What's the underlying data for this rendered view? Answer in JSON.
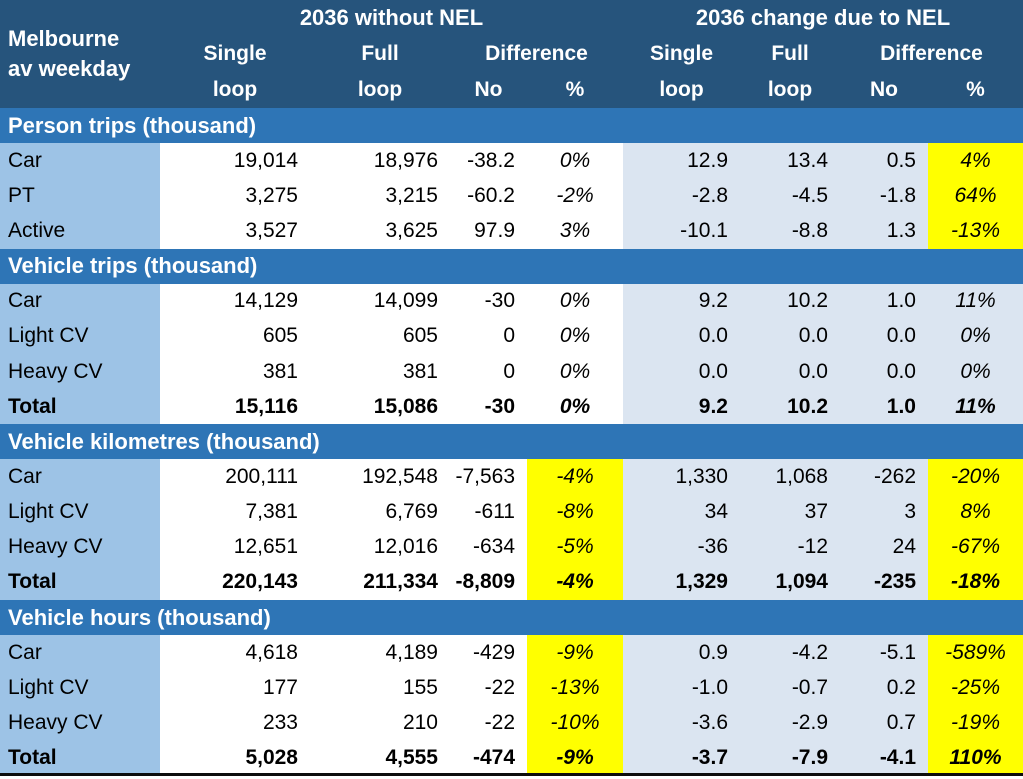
{
  "colors": {
    "header_bg": "#26547C",
    "band_bg": "#2E75B6",
    "label_bg": "#9DC3E6",
    "right_bg": "#DBE5F1",
    "highlight": "#FFFF00"
  },
  "header": {
    "corner_line1": "Melbourne",
    "corner_line2": "av weekday",
    "group_left": "2036 without NEL",
    "group_right": "2036 change due to NEL",
    "sub": {
      "single": "Single",
      "full": "Full",
      "difference": "Difference",
      "loop": "loop",
      "no": "No",
      "pct": "%"
    }
  },
  "sections": [
    {
      "title": "Person trips (thousand)",
      "rows": [
        {
          "label": "Car",
          "values": [
            "19,014",
            "18,976",
            "-38.2",
            "0%",
            "12.9",
            "13.4",
            "0.5",
            "4%"
          ]
        },
        {
          "label": "PT",
          "values": [
            "3,275",
            "3,215",
            "-60.2",
            "-2%",
            "-2.8",
            "-4.5",
            "-1.8",
            "64%"
          ]
        },
        {
          "label": "Active",
          "values": [
            "3,527",
            "3,625",
            "97.9",
            "3%",
            "-10.1",
            "-8.8",
            "1.3",
            "-13%"
          ]
        }
      ]
    },
    {
      "title": "Vehicle trips (thousand)",
      "rows": [
        {
          "label": "Car",
          "values": [
            "14,129",
            "14,099",
            "-30",
            "0%",
            "9.2",
            "10.2",
            "1.0",
            "11%"
          ]
        },
        {
          "label": "Light CV",
          "values": [
            "605",
            "605",
            "0",
            "0%",
            "0.0",
            "0.0",
            "0.0",
            "0%"
          ]
        },
        {
          "label": "Heavy CV",
          "values": [
            "381",
            "381",
            "0",
            "0%",
            "0.0",
            "0.0",
            "0.0",
            "0%"
          ]
        },
        {
          "label": "Total",
          "values": [
            "15,116",
            "15,086",
            "-30",
            "0%",
            "9.2",
            "10.2",
            "1.0",
            "11%"
          ]
        }
      ]
    },
    {
      "title": "Vehicle kilometres (thousand)",
      "rows": [
        {
          "label": "Car",
          "values": [
            "200,111",
            "192,548",
            "-7,563",
            "-4%",
            "1,330",
            "1,068",
            "-262",
            "-20%"
          ]
        },
        {
          "label": "Light CV",
          "values": [
            "7,381",
            "6,769",
            "-611",
            "-8%",
            "34",
            "37",
            "3",
            "8%"
          ]
        },
        {
          "label": "Heavy CV",
          "values": [
            "12,651",
            "12,016",
            "-634",
            "-5%",
            "-36",
            "-12",
            "24",
            "-67%"
          ]
        },
        {
          "label": "Total",
          "values": [
            "220,143",
            "211,334",
            "-8,809",
            "-4%",
            "1,329",
            "1,094",
            "-235",
            "-18%"
          ]
        }
      ]
    },
    {
      "title": "Vehicle hours (thousand)",
      "rows": [
        {
          "label": "Car",
          "values": [
            "4,618",
            "4,189",
            "-429",
            "-9%",
            "0.9",
            "-4.2",
            "-5.1",
            "-589%"
          ]
        },
        {
          "label": "Light CV",
          "values": [
            "177",
            "155",
            "-22",
            "-13%",
            "-1.0",
            "-0.7",
            "0.2",
            "-25%"
          ]
        },
        {
          "label": "Heavy CV",
          "values": [
            "233",
            "210",
            "-22",
            "-10%",
            "-3.6",
            "-2.9",
            "0.7",
            "-19%"
          ]
        },
        {
          "label": "Total",
          "values": [
            "5,028",
            "4,555",
            "-474",
            "-9%",
            "-3.7",
            "-7.9",
            "-4.1",
            "110%"
          ]
        }
      ]
    }
  ]
}
